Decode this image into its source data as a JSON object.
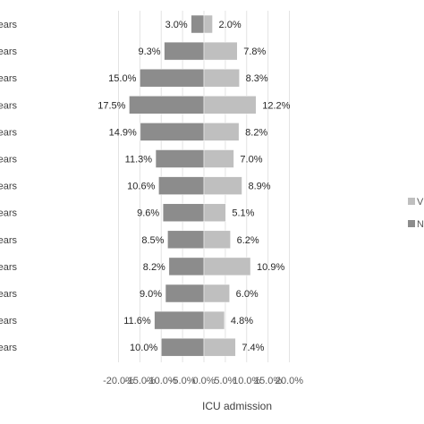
{
  "chart_data": {
    "type": "bar",
    "orientation": "horizontal-diverging",
    "categories": [
      "ears",
      "ears",
      "ears",
      "ears",
      "ears",
      "ears",
      "ears",
      "ears",
      "ears",
      "ears",
      "ears",
      "ears",
      "ears"
    ],
    "series": [
      {
        "name": "V",
        "color": "#bfbfbf",
        "values": [
          2.0,
          7.8,
          8.3,
          12.2,
          8.2,
          7.0,
          8.9,
          5.1,
          6.2,
          10.9,
          6.0,
          4.8,
          7.4
        ]
      },
      {
        "name": "N",
        "color": "#8c8c8c",
        "values": [
          -3.0,
          -9.3,
          -15.0,
          -17.5,
          -14.9,
          -11.3,
          -10.6,
          -9.6,
          -8.5,
          -8.2,
          -9.0,
          -11.6,
          -10.0
        ]
      }
    ],
    "value_labels_left": [
      "3.0%",
      "9.3%",
      "15.0%",
      "17.5%",
      "14.9%",
      "11.3%",
      "10.6%",
      "9.6%",
      "8.5%",
      "8.2%",
      "9.0%",
      "11.6%",
      "10.0%"
    ],
    "value_labels_right": [
      "2.0%",
      "7.8%",
      "8.3%",
      "12.2%",
      "8.2%",
      "7.0%",
      "8.9%",
      "5.1%",
      "6.2%",
      "10.9%",
      "6.0%",
      "4.8%",
      "7.4%"
    ],
    "x_ticks": [
      -20,
      -15,
      -10,
      -5,
      0,
      5,
      10,
      15,
      20
    ],
    "x_tick_labels": [
      "-20.0%",
      "-15.0%",
      "-10.0%",
      "-5.0%",
      "0.0%",
      "5.0%",
      "10.0%",
      "15.0%",
      "20.0%"
    ],
    "xlim": [
      -20,
      20
    ],
    "xlabel": "ICU admission",
    "title": "",
    "grid": true,
    "legend": {
      "placement": "right",
      "items": [
        "V",
        "N"
      ]
    }
  }
}
